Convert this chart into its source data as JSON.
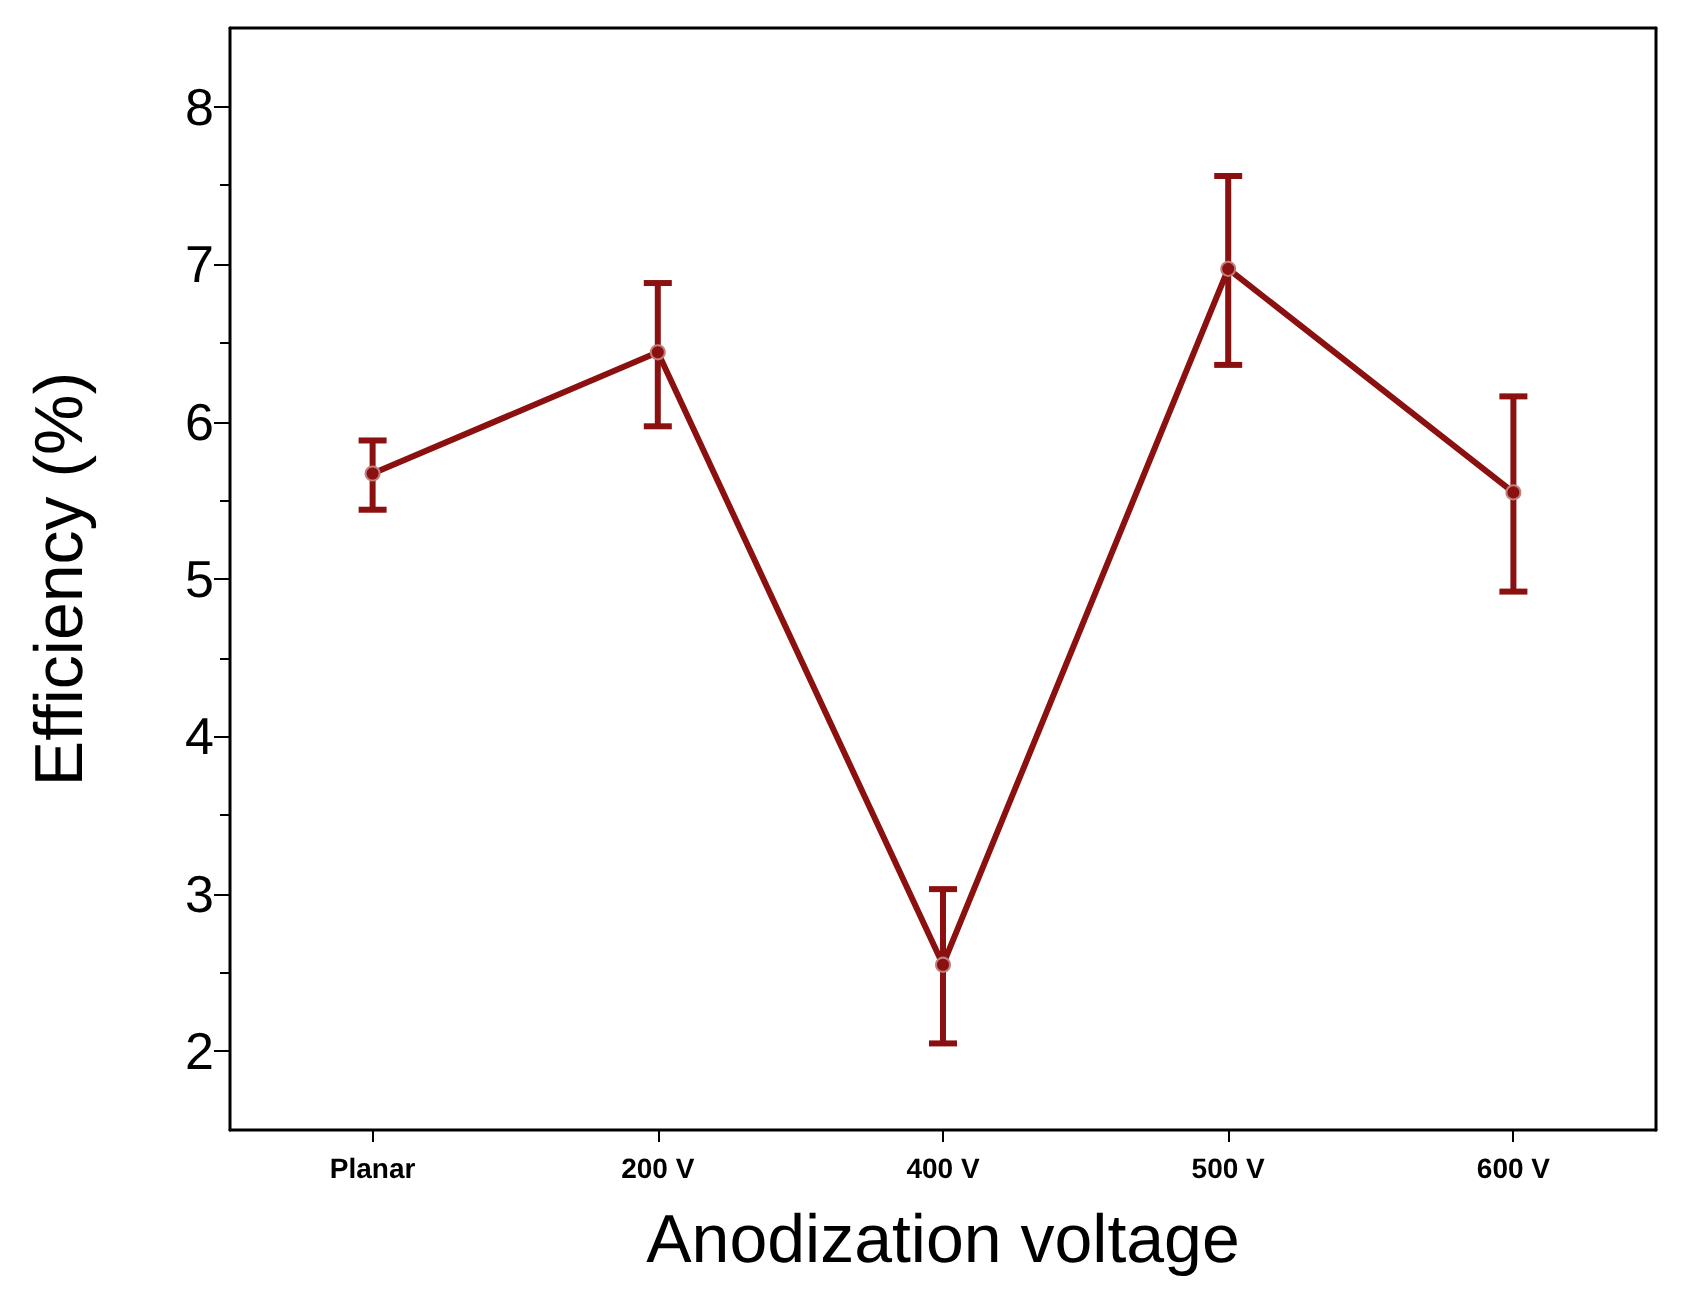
{
  "chart_data": {
    "type": "line",
    "xlabel": "Anodization voltage",
    "ylabel": "Efficiency (%)",
    "categories": [
      "Planar",
      "200 V",
      "400 V",
      "500 V",
      "600 V"
    ],
    "values": [
      5.67,
      6.44,
      2.55,
      6.97,
      5.55
    ],
    "errors": [
      [
        5.44,
        5.88
      ],
      [
        5.97,
        6.88
      ],
      [
        2.05,
        3.03
      ],
      [
        6.36,
        7.56
      ],
      [
        4.92,
        6.16
      ]
    ],
    "color": "#8b1010",
    "marker": "circle",
    "line_style": "solid",
    "grid": false,
    "ylim": [
      1.5,
      8.5
    ],
    "yticks": [
      2,
      3,
      4,
      5,
      6,
      7,
      8
    ]
  }
}
